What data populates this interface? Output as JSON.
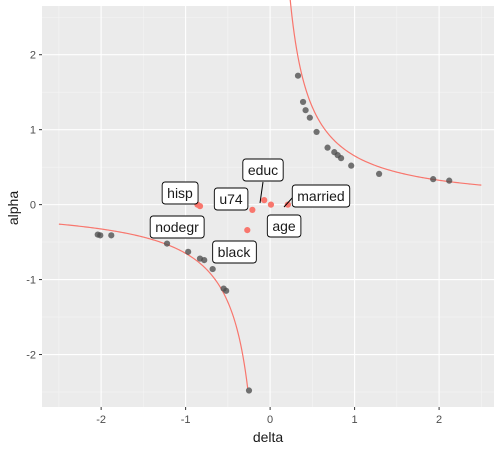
{
  "chart_data": {
    "type": "scatter",
    "xlabel": "delta",
    "ylabel": "alpha",
    "xlim": [
      -2.7,
      2.65
    ],
    "ylim": [
      -2.7,
      2.65
    ],
    "x_ticks": [
      -2,
      -1,
      0,
      1,
      2
    ],
    "y_ticks": [
      -2,
      -1,
      0,
      1,
      2
    ],
    "x_tick_labels": [
      "-2",
      "-1",
      "0",
      "1",
      "2"
    ],
    "y_tick_labels": [
      "-2",
      "-1",
      "0",
      "1",
      "2"
    ],
    "grid": true,
    "colors": {
      "panel": "#EBEBEB",
      "grid_major": "#FFFFFF",
      "curve": "#F8766D",
      "points_gray": "#4D4D4D",
      "points_highlight": "#F8766D"
    },
    "curve_relation": "alpha * delta = 0.65",
    "curve_branches": [
      {
        "x_from": -2.5,
        "x_to": -0.265
      },
      {
        "x_from": 0.23,
        "x_to": 2.5
      }
    ],
    "gray_points": [
      [
        -2.04,
        -0.4
      ],
      [
        -2.01,
        -0.41
      ],
      [
        -1.88,
        -0.41
      ],
      [
        -1.22,
        -0.52
      ],
      [
        -0.97,
        -0.63
      ],
      [
        -0.83,
        -0.72
      ],
      [
        -0.78,
        -0.74
      ],
      [
        -0.68,
        -0.86
      ],
      [
        -0.55,
        -1.12
      ],
      [
        -0.52,
        -1.15
      ],
      [
        -0.25,
        -2.48
      ],
      [
        0.33,
        1.72
      ],
      [
        0.39,
        1.37
      ],
      [
        0.42,
        1.26
      ],
      [
        0.47,
        1.16
      ],
      [
        0.55,
        0.97
      ],
      [
        0.68,
        0.76
      ],
      [
        0.76,
        0.7
      ],
      [
        0.8,
        0.66
      ],
      [
        0.84,
        0.62
      ],
      [
        0.96,
        0.52
      ],
      [
        1.29,
        0.41
      ],
      [
        1.93,
        0.34
      ],
      [
        2.12,
        0.32
      ]
    ],
    "labeled_points": [
      {
        "label": "hisp",
        "x": -0.86,
        "y": 0.0
      },
      {
        "label": "nodegr",
        "x": -0.83,
        "y": -0.02
      },
      {
        "label": "u74",
        "x": -0.21,
        "y": -0.07
      },
      {
        "label": "black",
        "x": -0.27,
        "y": -0.34
      },
      {
        "label": "educ",
        "x": -0.07,
        "y": 0.06
      },
      {
        "label": "age",
        "x": 0.01,
        "y": 0.0
      },
      {
        "label": "married",
        "x": 0.21,
        "y": 0.0
      }
    ]
  }
}
